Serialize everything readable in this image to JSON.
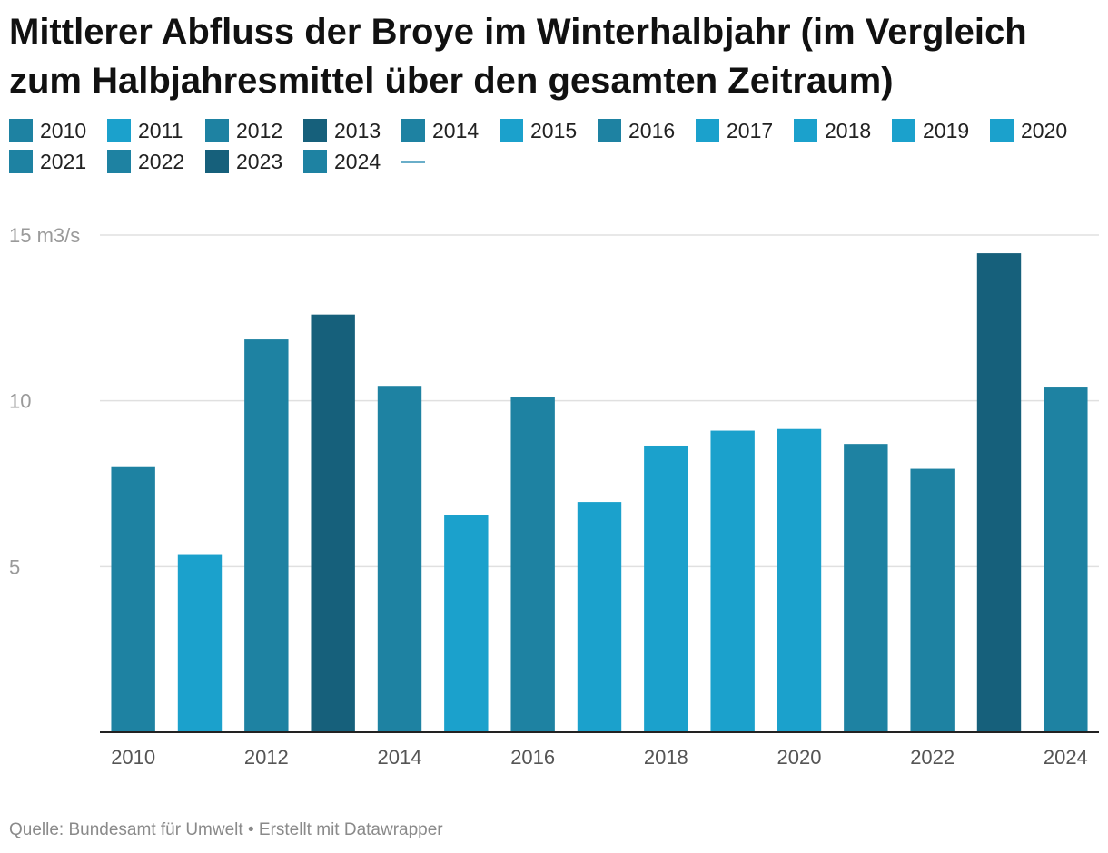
{
  "title": "Mittlerer Abfluss der Broye im Winterhalbjahr (im Vergleich zum Halbjahresmittel über den gesamten Zeitraum)",
  "footer": {
    "source_label": "Quelle: Bundesamt für Umwelt",
    "separator": "•",
    "credit": "Erstellt mit Datawrapper"
  },
  "colors": {
    "near_mean": "#1e82a2",
    "below_mean": "#1ba1cc",
    "above_mean": "#16607b",
    "mean_line": "#6aaec9",
    "gridline": "#e0e0e0",
    "baseline": "#222222"
  },
  "legend": [
    {
      "label": "2010",
      "color": "#1e82a2"
    },
    {
      "label": "2011",
      "color": "#1ba1cc"
    },
    {
      "label": "2012",
      "color": "#1e82a2"
    },
    {
      "label": "2013",
      "color": "#16607b"
    },
    {
      "label": "2014",
      "color": "#1e82a2"
    },
    {
      "label": "2015",
      "color": "#1ba1cc"
    },
    {
      "label": "2016",
      "color": "#1e82a2"
    },
    {
      "label": "2017",
      "color": "#1ba1cc"
    },
    {
      "label": "2018",
      "color": "#1ba1cc"
    },
    {
      "label": "2019",
      "color": "#1ba1cc"
    },
    {
      "label": "2020",
      "color": "#1ba1cc"
    },
    {
      "label": "2021",
      "color": "#1e82a2"
    },
    {
      "label": "2022",
      "color": "#1e82a2"
    },
    {
      "label": "2023",
      "color": "#16607b"
    },
    {
      "label": "2024",
      "color": "#1e82a2"
    }
  ],
  "chart_data": {
    "type": "bar",
    "title": "Mittlerer Abfluss der Broye im Winterhalbjahr (im Vergleich zum Halbjahresmittel über den gesamten Zeitraum)",
    "xlabel": "",
    "ylabel": "",
    "y_unit_label": "m3/s",
    "ylim": [
      0,
      15
    ],
    "yticks": [
      {
        "value": 5,
        "label": "5"
      },
      {
        "value": 10,
        "label": "10"
      },
      {
        "value": 15,
        "label": "15 m3/s"
      }
    ],
    "grid": true,
    "categories": [
      "2010",
      "2011",
      "2012",
      "2013",
      "2014",
      "2015",
      "2016",
      "2017",
      "2018",
      "2019",
      "2020",
      "2021",
      "2022",
      "2023",
      "2024"
    ],
    "values": [
      8.0,
      5.35,
      11.85,
      12.6,
      10.45,
      6.55,
      10.1,
      6.95,
      8.65,
      9.1,
      9.15,
      8.7,
      7.95,
      14.45,
      10.4
    ],
    "colors": [
      "#1e82a2",
      "#1ba1cc",
      "#1e82a2",
      "#16607b",
      "#1e82a2",
      "#1ba1cc",
      "#1e82a2",
      "#1ba1cc",
      "#1ba1cc",
      "#1ba1cc",
      "#1ba1cc",
      "#1e82a2",
      "#1e82a2",
      "#16607b",
      "#1e82a2"
    ],
    "xtick_labels": [
      "2010",
      "2012",
      "2014",
      "2016",
      "2018",
      "2020",
      "2022",
      "2024"
    ]
  }
}
